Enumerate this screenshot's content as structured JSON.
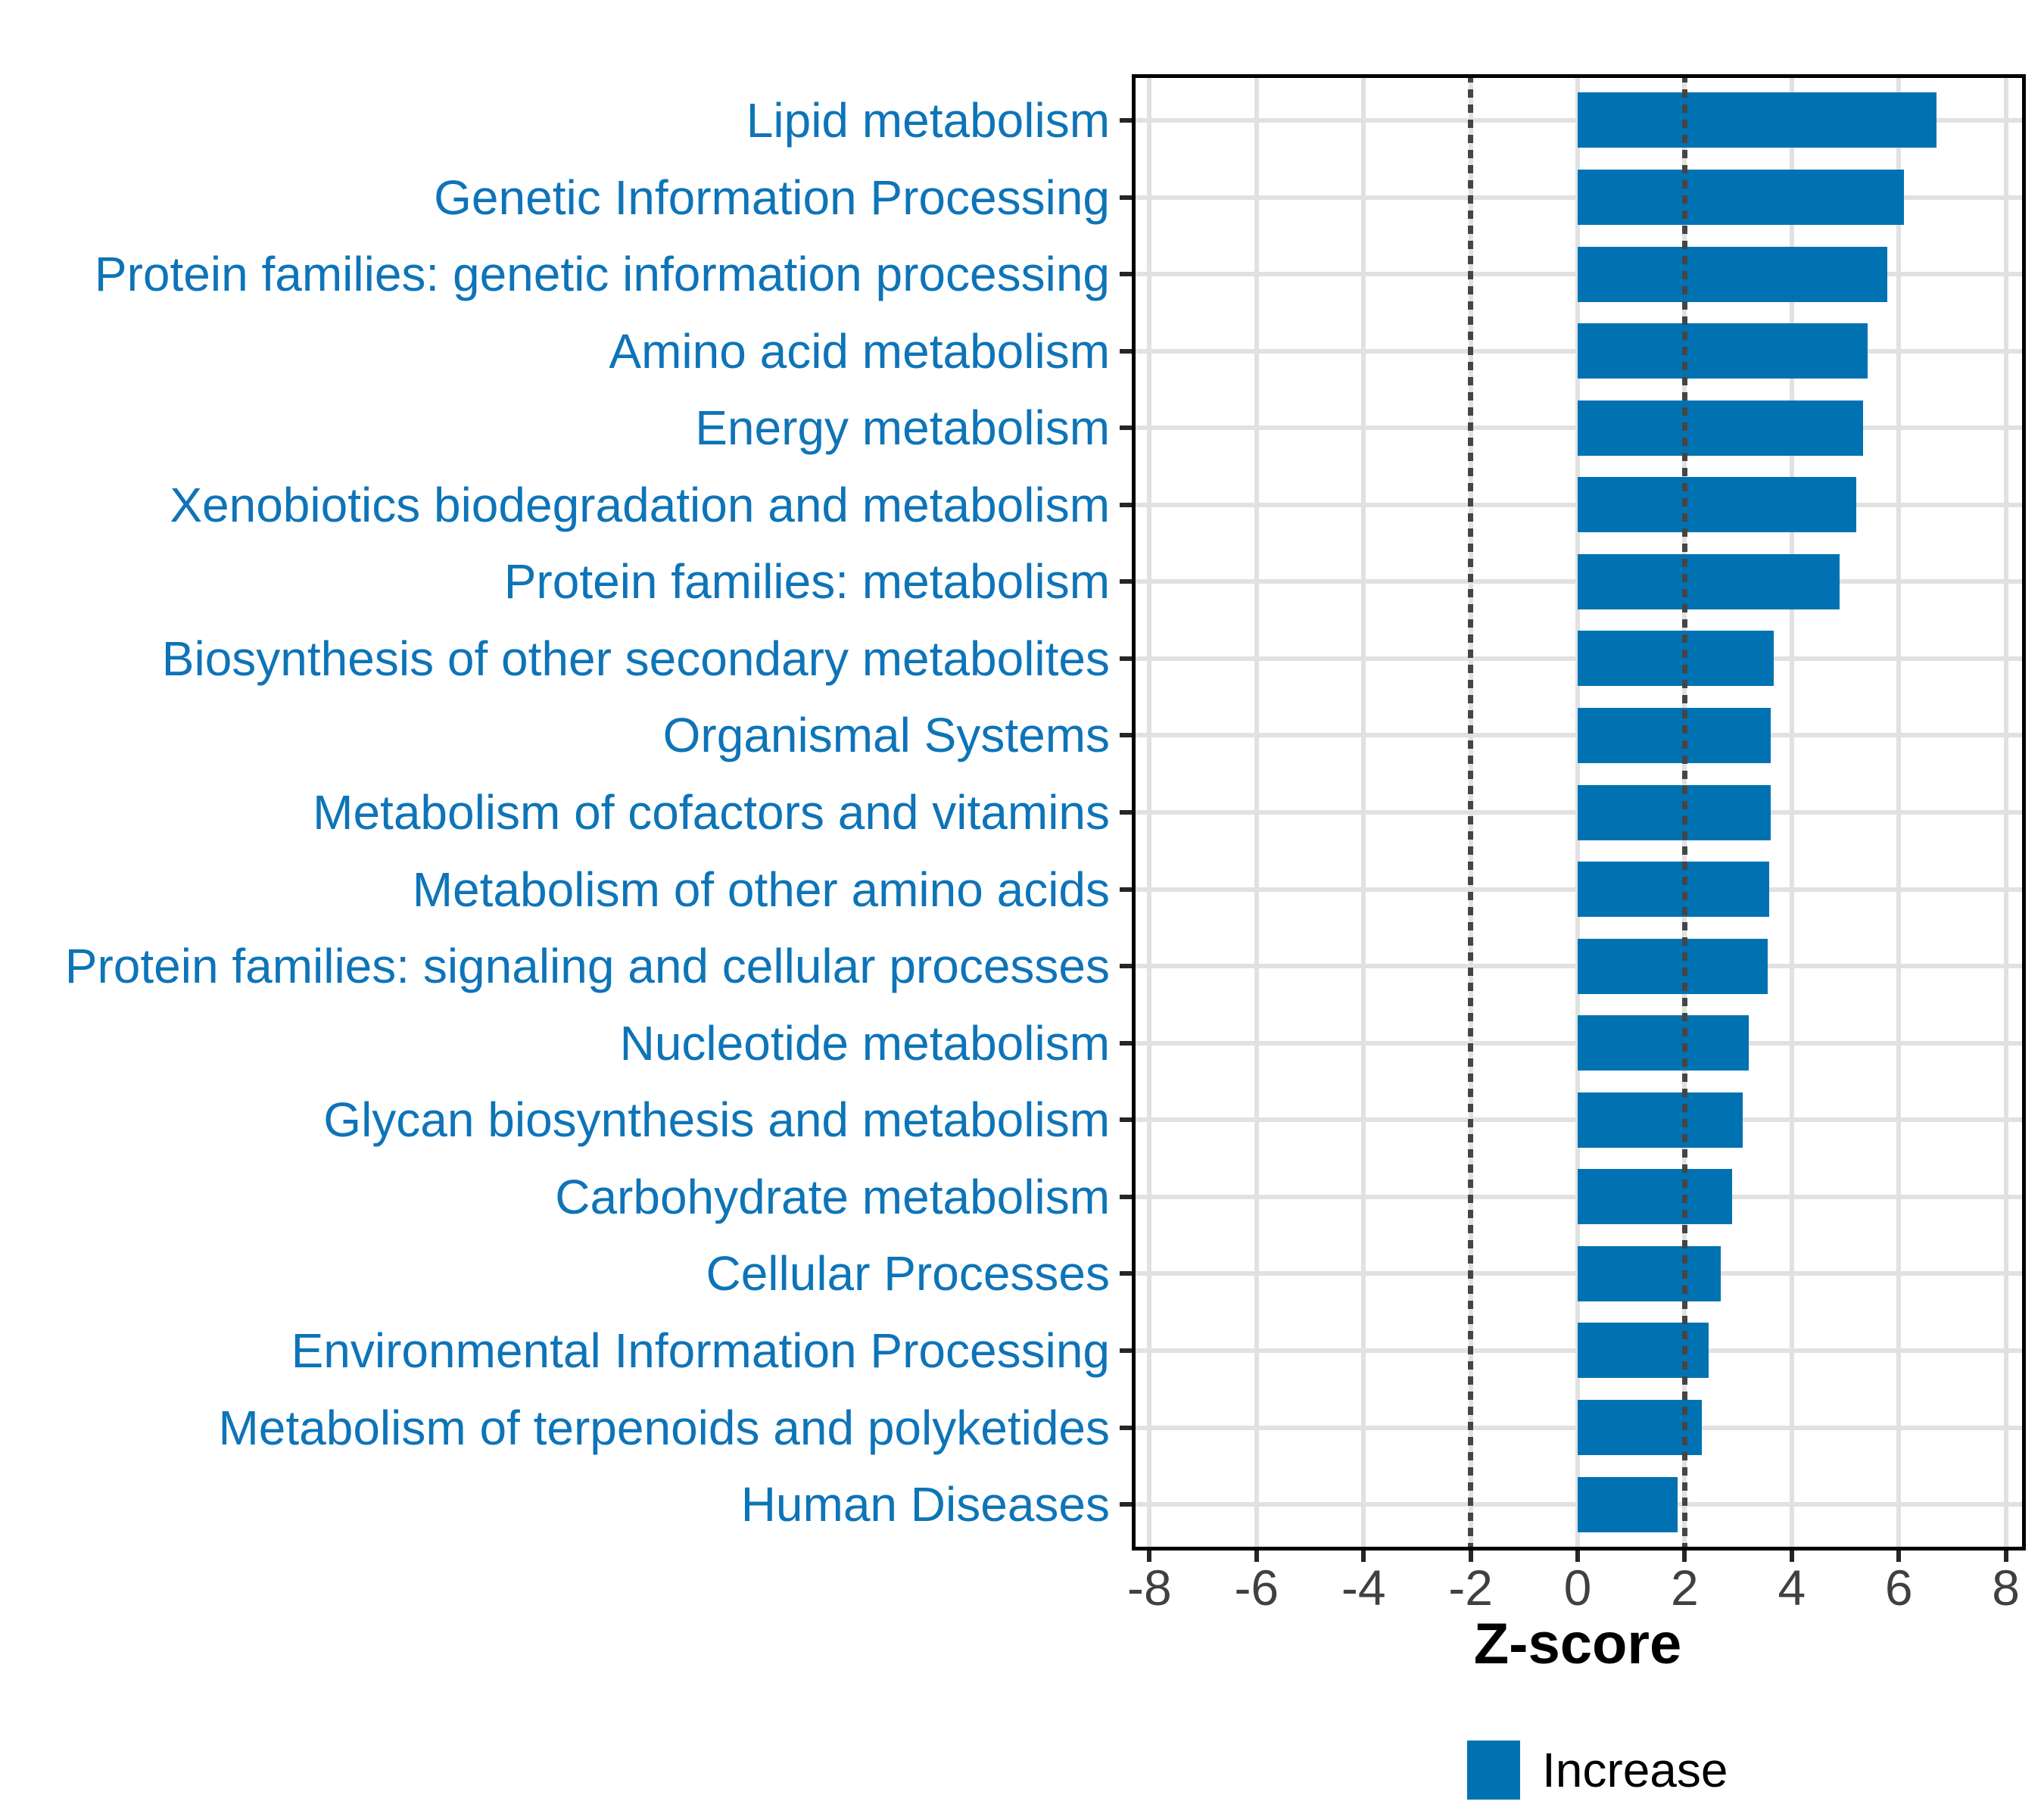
{
  "chart_data": {
    "type": "bar",
    "orientation": "horizontal",
    "title": "",
    "xlabel": "Z-score",
    "ylabel": "",
    "legend_label": "Increase",
    "legend_position": "bottom-center",
    "grid": true,
    "xlim": [
      -8.35,
      8.35
    ],
    "xticks": [
      -8,
      -6,
      -4,
      -2,
      0,
      2,
      4,
      6,
      8
    ],
    "reference_lines": [
      -2,
      2
    ],
    "categories": [
      "Lipid metabolism",
      "Genetic Information Processing",
      "Protein families: genetic information processing",
      "Amino acid metabolism",
      "Energy metabolism",
      "Xenobiotics biodegradation and metabolism",
      "Protein families: metabolism",
      "Biosynthesis of other secondary metabolites",
      "Organismal Systems",
      "Metabolism of cofactors and vitamins",
      "Metabolism of other amino acids",
      "Protein families: signaling and cellular processes",
      "Nucleotide metabolism",
      "Glycan biosynthesis and metabolism",
      "Carbohydrate metabolism",
      "Cellular Processes",
      "Environmental Information Processing",
      "Metabolism of terpenoids and polyketides",
      "Human Diseases"
    ],
    "series": [
      {
        "name": "Increase",
        "values": [
          6.7,
          6.1,
          5.78,
          5.42,
          5.33,
          5.2,
          4.9,
          3.67,
          3.6,
          3.6,
          3.58,
          3.55,
          3.2,
          3.09,
          2.89,
          2.67,
          2.44,
          2.32,
          1.87
        ]
      }
    ],
    "colors": {
      "bar": "#0072b2",
      "category_label": "#0e74b8",
      "tick_label": "#404040",
      "gridline": "#e1e1e1",
      "reference_line": "#454545",
      "axis_border": "#000000",
      "tick_mark": "#262626",
      "axis_title": "#000000",
      "legend_text": "#000000",
      "background": "#ffffff"
    }
  }
}
